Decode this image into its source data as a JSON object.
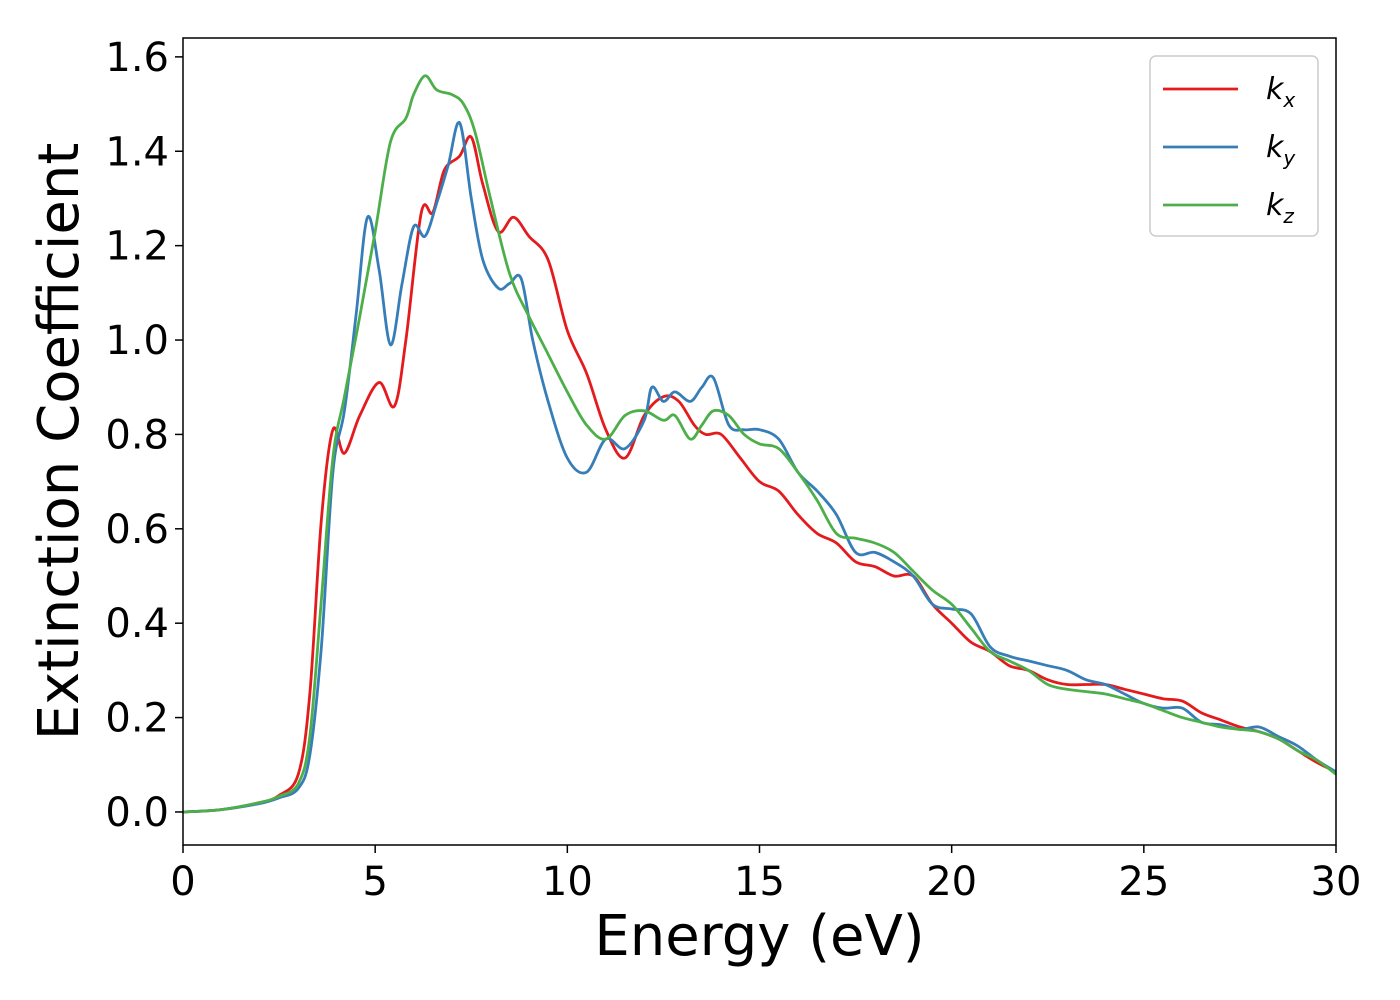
{
  "chart_data": {
    "type": "line",
    "xlabel": "Energy (eV)",
    "ylabel": "Extinction Coefficient",
    "xlim": [
      0,
      30
    ],
    "ylim": [
      -0.07,
      1.64
    ],
    "x_ticks": [
      "0",
      "5",
      "10",
      "15",
      "20",
      "25",
      "30"
    ],
    "y_ticks": [
      "0.0",
      "0.2",
      "0.4",
      "0.6",
      "0.8",
      "1.0",
      "1.2",
      "1.4",
      "1.6"
    ],
    "grid": false,
    "legend_position": "top-right",
    "series": [
      {
        "name": "k",
        "subscript": "x",
        "color": "#e41a1c",
        "x": [
          0,
          1,
          2,
          2.5,
          3.0,
          3.3,
          3.6,
          3.9,
          4.2,
          4.6,
          5.1,
          5.5,
          5.8,
          6.2,
          6.5,
          6.8,
          7.2,
          7.5,
          7.8,
          8.2,
          8.6,
          9.0,
          9.5,
          10,
          10.5,
          11,
          11.5,
          12,
          12.5,
          12.9,
          13.3,
          13.6,
          14,
          14.5,
          15,
          15.5,
          16,
          16.5,
          17,
          17.5,
          18,
          18.5,
          19,
          19.5,
          20,
          20.5,
          21,
          21.5,
          22,
          22.5,
          23,
          23.5,
          24,
          24.5,
          25,
          25.5,
          26,
          26.5,
          27,
          27.5,
          28,
          28.5,
          29,
          29.5,
          30
        ],
        "values": [
          0,
          0.005,
          0.02,
          0.035,
          0.08,
          0.25,
          0.62,
          0.81,
          0.76,
          0.84,
          0.91,
          0.86,
          1.0,
          1.27,
          1.27,
          1.36,
          1.39,
          1.43,
          1.33,
          1.23,
          1.26,
          1.22,
          1.17,
          1.02,
          0.93,
          0.81,
          0.75,
          0.84,
          0.88,
          0.87,
          0.82,
          0.8,
          0.8,
          0.75,
          0.7,
          0.68,
          0.63,
          0.59,
          0.57,
          0.53,
          0.52,
          0.5,
          0.5,
          0.44,
          0.4,
          0.36,
          0.34,
          0.31,
          0.3,
          0.28,
          0.27,
          0.27,
          0.27,
          0.26,
          0.25,
          0.24,
          0.235,
          0.21,
          0.195,
          0.18,
          0.17,
          0.155,
          0.13,
          0.105,
          0.085
        ]
      },
      {
        "name": "k",
        "subscript": "y",
        "color": "#377eb8",
        "x": [
          0,
          1,
          2,
          2.5,
          3.0,
          3.3,
          3.6,
          3.9,
          4.2,
          4.5,
          4.8,
          5.1,
          5.4,
          5.7,
          6.0,
          6.3,
          6.6,
          6.9,
          7.2,
          7.5,
          7.8,
          8.2,
          8.5,
          8.8,
          9.1,
          9.5,
          10,
          10.5,
          11,
          11.5,
          12,
          12.2,
          12.5,
          12.8,
          13.2,
          13.5,
          13.8,
          14.2,
          14.6,
          15,
          15.5,
          16,
          16.5,
          17,
          17.5,
          18,
          18.5,
          19,
          19.5,
          20,
          20.5,
          21,
          21.5,
          22,
          22.5,
          23,
          23.5,
          24,
          24.5,
          25,
          25.5,
          26,
          26.5,
          27,
          27.5,
          28,
          28.5,
          29,
          29.5,
          30
        ],
        "values": [
          0,
          0.005,
          0.018,
          0.03,
          0.05,
          0.12,
          0.35,
          0.72,
          0.85,
          1.05,
          1.26,
          1.15,
          0.99,
          1.12,
          1.24,
          1.22,
          1.29,
          1.37,
          1.46,
          1.3,
          1.17,
          1.11,
          1.12,
          1.13,
          1.0,
          0.87,
          0.75,
          0.72,
          0.79,
          0.77,
          0.83,
          0.9,
          0.87,
          0.89,
          0.87,
          0.9,
          0.92,
          0.82,
          0.81,
          0.81,
          0.79,
          0.72,
          0.68,
          0.63,
          0.55,
          0.55,
          0.53,
          0.5,
          0.44,
          0.43,
          0.42,
          0.35,
          0.33,
          0.32,
          0.31,
          0.3,
          0.28,
          0.27,
          0.25,
          0.23,
          0.22,
          0.22,
          0.19,
          0.185,
          0.175,
          0.18,
          0.16,
          0.14,
          0.11,
          0.085
        ]
      },
      {
        "name": "k",
        "subscript": "z",
        "color": "#4daf4a",
        "x": [
          0,
          1,
          2,
          2.5,
          3.0,
          3.3,
          3.6,
          3.9,
          4.2,
          4.6,
          5.0,
          5.4,
          5.8,
          6.0,
          6.3,
          6.6,
          7.0,
          7.3,
          7.6,
          8.0,
          8.5,
          9,
          9.5,
          10,
          10.5,
          11,
          11.5,
          12,
          12.5,
          12.8,
          13.2,
          13.5,
          13.8,
          14.2,
          14.6,
          15,
          15.5,
          16,
          16.5,
          17,
          17.5,
          18,
          18.5,
          19,
          19.5,
          20,
          20.5,
          21,
          21.5,
          22,
          22.5,
          23,
          23.5,
          24,
          24.5,
          25,
          25.5,
          26,
          26.5,
          27,
          27.5,
          28,
          28.5,
          29,
          29.5,
          30
        ],
        "values": [
          0,
          0.005,
          0.02,
          0.033,
          0.06,
          0.16,
          0.45,
          0.75,
          0.88,
          1.05,
          1.23,
          1.42,
          1.47,
          1.52,
          1.56,
          1.53,
          1.52,
          1.5,
          1.44,
          1.3,
          1.14,
          1.05,
          0.97,
          0.89,
          0.82,
          0.79,
          0.84,
          0.85,
          0.83,
          0.84,
          0.79,
          0.82,
          0.85,
          0.84,
          0.8,
          0.78,
          0.77,
          0.72,
          0.66,
          0.59,
          0.58,
          0.57,
          0.55,
          0.51,
          0.47,
          0.44,
          0.39,
          0.34,
          0.32,
          0.3,
          0.27,
          0.26,
          0.255,
          0.25,
          0.24,
          0.23,
          0.215,
          0.2,
          0.19,
          0.18,
          0.175,
          0.17,
          0.155,
          0.13,
          0.11,
          0.08
        ]
      }
    ]
  }
}
